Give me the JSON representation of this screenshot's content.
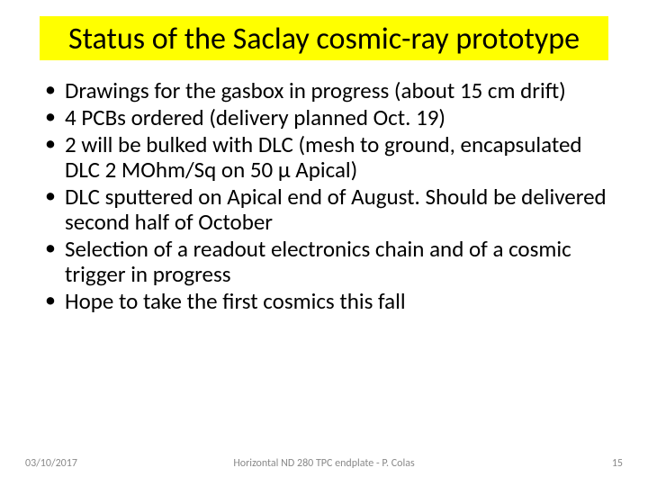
{
  "title": "Status of the Saclay cosmic-ray prototype",
  "title_bg": "#ffff00",
  "title_fontsize": 34,
  "bullet_fontsize": 25,
  "bullets": [
    "Drawings for the gasbox in progress (about 15 cm drift)",
    "4 PCBs ordered (delivery planned Oct. 19)",
    "2 will be bulked with DLC (mesh to ground, encapsulated DLC 2 MOhm/Sq on 50 µ Apical)",
    "DLC sputtered on Apical end of August. Should be delivered second half of October",
    "Selection of a readout electronics chain and of a cosmic trigger in progress",
    "Hope to take the first cosmics this fall"
  ],
  "footer": {
    "date": "03/10/2017",
    "center": "Horizontal ND 280 TPC endplate - P. Colas",
    "page": "15"
  },
  "footer_color": "#8a8a8a",
  "footer_fontsize": 12,
  "background_color": "#ffffff"
}
